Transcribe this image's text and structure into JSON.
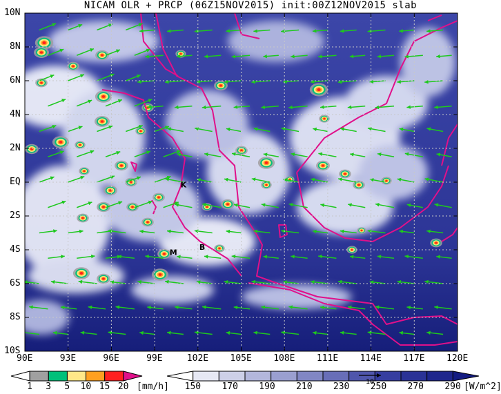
{
  "title": "NICAM OLR + PRCP (06Z15NOV2015) init:00Z12NOV2015 slab",
  "map": {
    "lon_range": [
      90,
      120
    ],
    "lat_range": [
      -10,
      10
    ],
    "x_ticks": [
      "90E",
      "93E",
      "96E",
      "99E",
      "102E",
      "105E",
      "108E",
      "111E",
      "114E",
      "117E",
      "120E"
    ],
    "y_ticks": [
      "10N",
      "8N",
      "6N",
      "4N",
      "2N",
      "EQ",
      "2S",
      "4S",
      "6S",
      "8S",
      "10S"
    ],
    "colors": {
      "ocean_dark": "#161e7a",
      "ocean_mid": "#3a44a6",
      "cloud": "#e8ecf8",
      "coastline": "#e0108a",
      "wind_vector": "#1ec81e",
      "grid": "#c8c8c8"
    },
    "place_markers": [
      {
        "label": "K",
        "lon": 101.0,
        "lat": -0.1
      },
      {
        "label": "M",
        "lon": 100.3,
        "lat": -4.1
      },
      {
        "label": "B",
        "lon": 102.3,
        "lat": -3.8
      }
    ]
  },
  "precip_colorbar": {
    "labels": [
      "1",
      "3",
      "5",
      "10",
      "15",
      "20"
    ],
    "unit": "[mm/h]",
    "colors": [
      "#ffffff",
      "#a0a0a0",
      "#00c07a",
      "#ffe888",
      "#ffa020",
      "#ff2020",
      "#e0108a"
    ]
  },
  "olr_colorbar": {
    "labels": [
      "150",
      "170",
      "190",
      "210",
      "230",
      "250",
      "270",
      "290"
    ],
    "unit": "[W/m^2]",
    "vector_key": "10",
    "colors": [
      "#ffffff",
      "#e6e8f4",
      "#cdd0e8",
      "#b3b7dc",
      "#9a9fd0",
      "#8187c4",
      "#686eb8",
      "#4f56ac",
      "#363ea0",
      "#2a3296",
      "#1e268c",
      "#141c82"
    ]
  }
}
